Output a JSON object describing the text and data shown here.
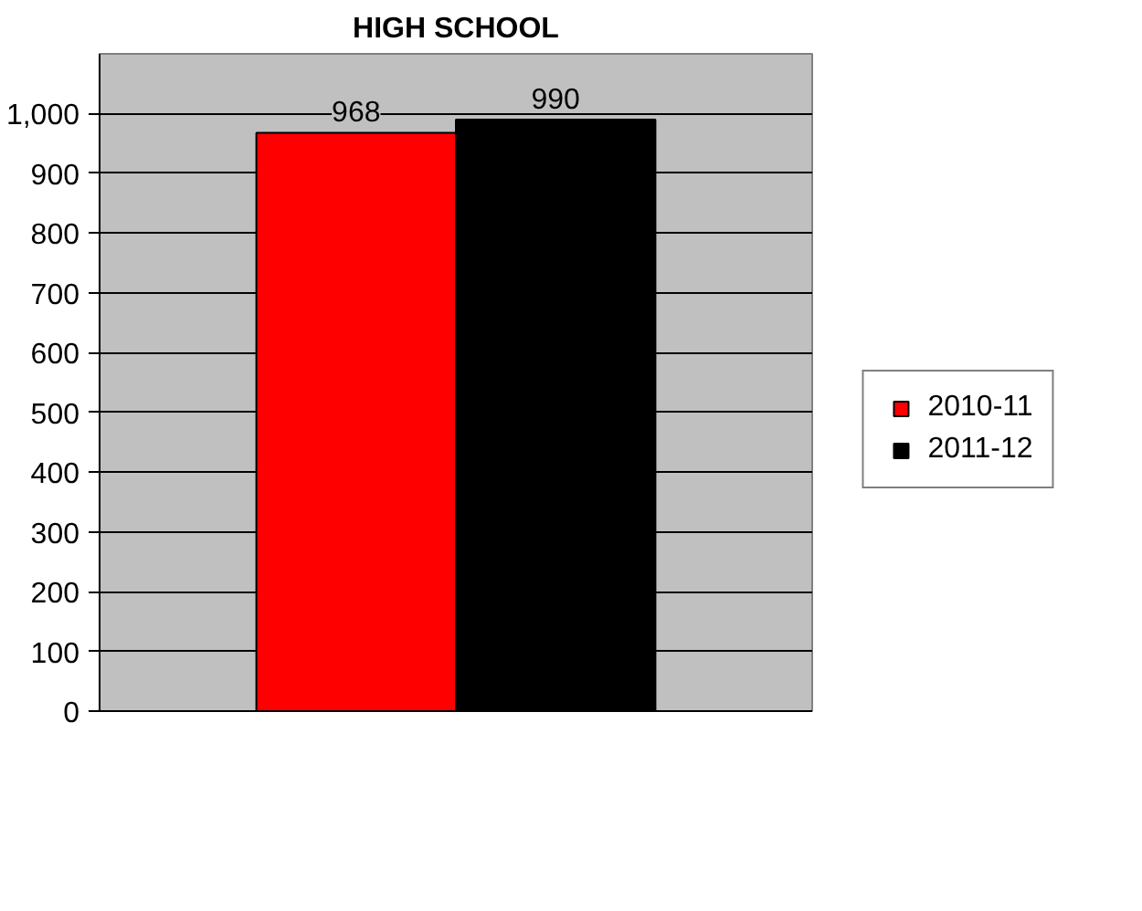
{
  "chart_data": {
    "type": "bar",
    "title": "HIGH SCHOOL",
    "categories": [
      null
    ],
    "series": [
      {
        "name": "2010-11",
        "color": "#ff0000",
        "values": [
          968
        ]
      },
      {
        "name": "2011-12",
        "color": "#000000",
        "values": [
          990
        ]
      }
    ],
    "ylim": [
      0,
      1100
    ],
    "yticks": [
      0,
      100,
      200,
      300,
      400,
      500,
      600,
      700,
      800,
      900,
      {
        "value": 1000,
        "label": "1,000"
      }
    ],
    "grid": "y",
    "legend": "right",
    "data_labels": true
  }
}
